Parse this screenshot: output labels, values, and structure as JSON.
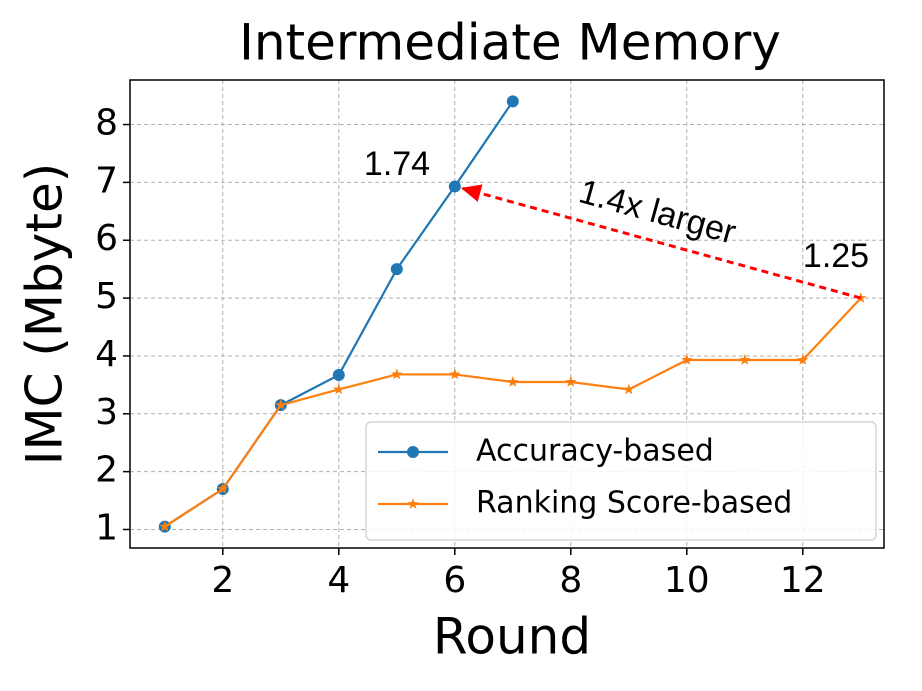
{
  "chart_data": {
    "type": "line",
    "title": "Intermediate Memory",
    "x_label": "Round",
    "y_label": "IMC (Mbyte)",
    "x": [
      1,
      2,
      3,
      4,
      5,
      6,
      7,
      8,
      9,
      10,
      11,
      12,
      13
    ],
    "series": [
      {
        "name": "Accuracy-based",
        "color": "#1f77b4",
        "marker": "circle",
        "values": [
          1.05,
          1.7,
          3.15,
          3.67,
          5.5,
          6.93,
          8.4,
          null,
          null,
          null,
          null,
          null,
          null
        ]
      },
      {
        "name": "Ranking Score-based",
        "color": "#ff7f0e",
        "marker": "star",
        "values": [
          1.05,
          1.7,
          3.15,
          3.42,
          3.68,
          3.68,
          3.55,
          3.55,
          3.42,
          3.93,
          3.93,
          3.93,
          5.0
        ]
      }
    ],
    "xlim": [
      0.4,
      13.4
    ],
    "ylim": [
      0.68,
      8.77
    ],
    "xticks": [
      2,
      4,
      6,
      8,
      10,
      12
    ],
    "yticks": [
      1,
      2,
      3,
      4,
      5,
      6,
      7,
      8
    ],
    "grid": true,
    "legend": "lower right",
    "annotations": [
      "1.74",
      "1.25",
      "1.4x larger"
    ],
    "arrow_color": "#ff0000"
  }
}
